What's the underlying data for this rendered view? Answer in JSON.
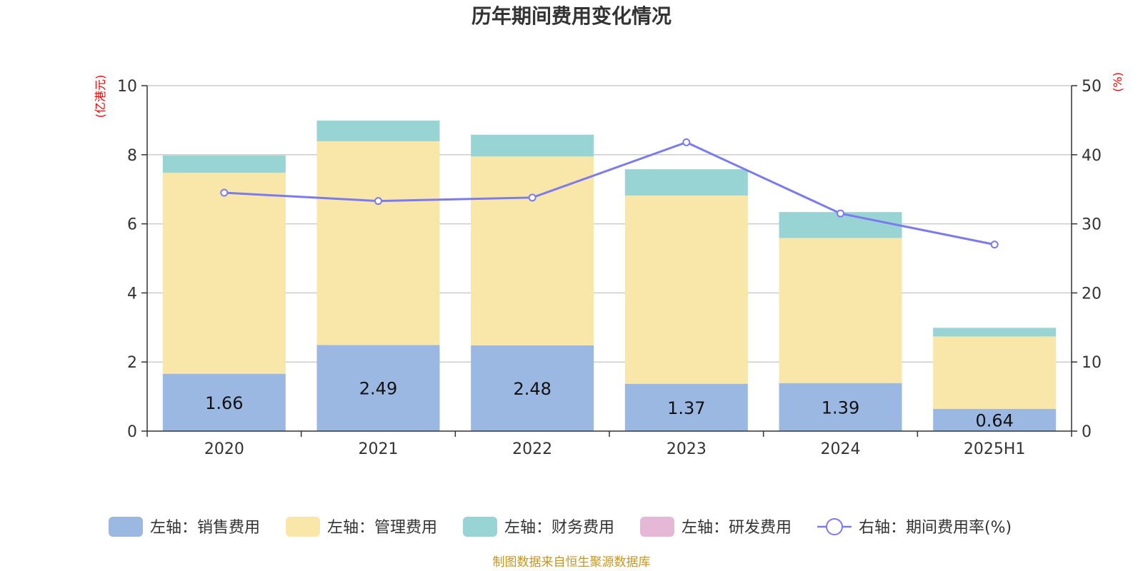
{
  "chart_data": {
    "type": "bar",
    "stacked": true,
    "title": "历年期间费用变化情况",
    "categories": [
      "2020",
      "2021",
      "2022",
      "2023",
      "2024",
      "2025H1"
    ],
    "left_axis": {
      "unit": "(亿港元)",
      "ylim": [
        0,
        10
      ],
      "ticks": [
        0,
        2,
        4,
        6,
        8,
        10
      ]
    },
    "right_axis": {
      "unit": "(%)",
      "ylim": [
        0,
        50
      ],
      "ticks": [
        0,
        10,
        20,
        30,
        40,
        50
      ]
    },
    "series": [
      {
        "name": "左轴：销售费用",
        "axis": "left",
        "kind": "bar",
        "color": "#9bb8e2",
        "values": [
          1.66,
          2.49,
          2.48,
          1.37,
          1.39,
          0.64
        ],
        "show_labels": true
      },
      {
        "name": "左轴：管理费用",
        "axis": "left",
        "kind": "bar",
        "color": "#f8e7a9",
        "values": [
          5.82,
          5.9,
          5.47,
          5.45,
          4.2,
          2.1
        ],
        "show_labels": false
      },
      {
        "name": "左轴：财务费用",
        "axis": "left",
        "kind": "bar",
        "color": "#98d4d4",
        "values": [
          0.5,
          0.6,
          0.63,
          0.76,
          0.75,
          0.25
        ],
        "show_labels": false
      },
      {
        "name": "左轴：研发费用",
        "axis": "left",
        "kind": "bar",
        "color": "#e6b8d8",
        "values": [
          0,
          0,
          0,
          0,
          0,
          0
        ],
        "show_labels": false
      },
      {
        "name": "右轴：期间费用率(%)",
        "axis": "right",
        "kind": "line",
        "color": "#7b7bef",
        "values": [
          34.5,
          33.3,
          33.8,
          41.8,
          31.5,
          27
        ]
      }
    ],
    "grid": true,
    "legend_position": "bottom"
  },
  "source_note": "制图数据来自恒生聚源数据库"
}
